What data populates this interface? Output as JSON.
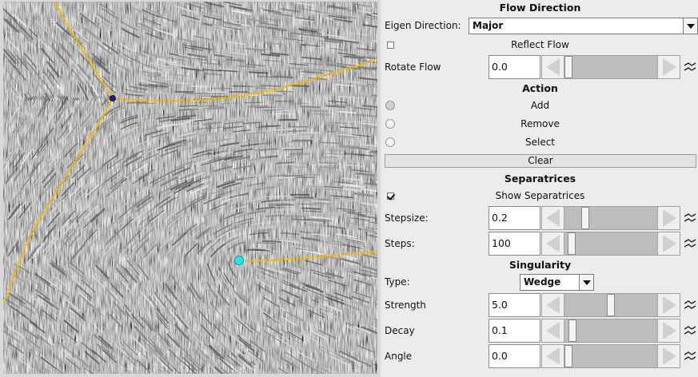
{
  "flow_direction": {
    "title": "Flow Direction",
    "eigen_label": "Eigen Direction:",
    "eigen_value": "Major",
    "reflect_label": "Reflect Flow",
    "reflect_checked": false,
    "rotate_label": "Rotate Flow",
    "rotate_value": "0.0",
    "rotate_level": 0.0
  },
  "action": {
    "title": "Action",
    "options": [
      "Add",
      "Remove",
      "Select"
    ],
    "selected": "Add",
    "clear_label": "Clear"
  },
  "separatrices": {
    "title": "Separatrices",
    "show_label": "Show Separatrices",
    "show_checked": true,
    "stepsize_label": "Stepsize:",
    "stepsize_value": "0.2",
    "stepsize_level": 0.2,
    "steps_label": "Steps:",
    "steps_value": "100",
    "steps_level": 0.04
  },
  "singularity": {
    "title": "Singularity",
    "type_label": "Type:",
    "type_value": "Wedge",
    "strength_label": "Strength",
    "strength_value": "5.0",
    "strength_level": 0.5,
    "decay_label": "Decay",
    "decay_value": "0.1",
    "decay_level": 0.05,
    "angle_label": "Angle",
    "angle_value": "0.0",
    "angle_level": 0.0
  },
  "colors": {
    "separatrix": "#f5b800",
    "trisector_point": "#1a1aa0",
    "wedge_point": "#1ee8e8",
    "panel_bg": "#ececec"
  },
  "icons": {
    "link": "link-icon"
  }
}
